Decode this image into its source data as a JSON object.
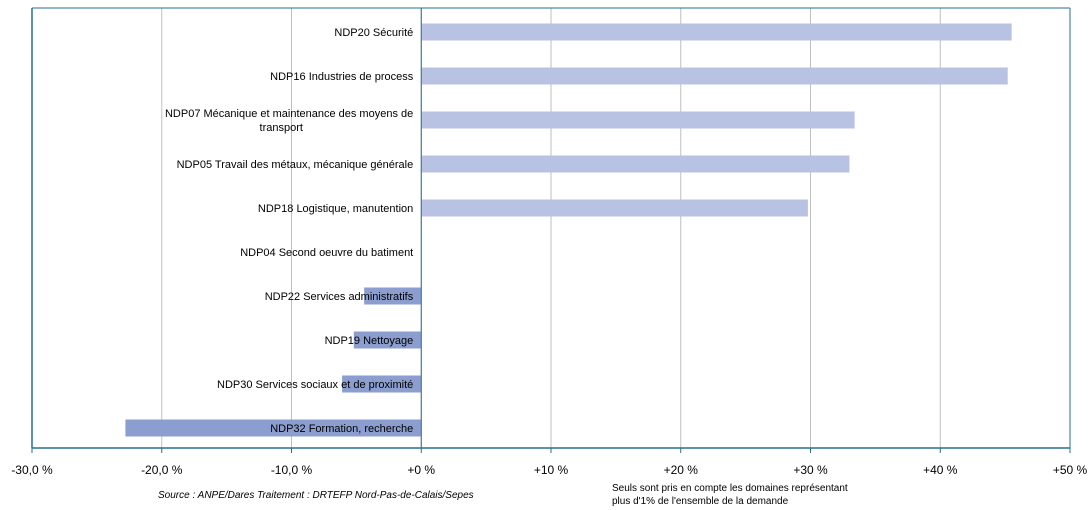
{
  "chart_data": {
    "type": "bar",
    "orientation": "horizontal",
    "categories": [
      "NDP20 Sécurité",
      "NDP16 Industries de process",
      "NDP07 Mécanique et maintenance des moyens de transport",
      "NDP05 Travail des métaux, mécanique générale",
      "NDP18 Logistique, manutention",
      "NDP04 Second oeuvre du batiment",
      "NDP22 Services administratifs",
      "NDP19 Nettoyage",
      "NDP30 Services sociaux et de proximité",
      "NDP32 Formation, recherche"
    ],
    "values": [
      45.5,
      45.2,
      33.4,
      33.0,
      29.8,
      0.0,
      -4.4,
      -5.2,
      -6.1,
      -22.8
    ],
    "xlim": [
      -30,
      50
    ],
    "xticks": [
      -30,
      -20,
      -10,
      0,
      10,
      20,
      30,
      40,
      50
    ],
    "xtick_labels": [
      "-30,0 %",
      "-20,0 %",
      "-10,0 %",
      "+0 %",
      "+10 %",
      "+20 %",
      "+30 %",
      "+40 %",
      "+50 %"
    ],
    "grid": "vertical",
    "colors": {
      "positive": "#b8c2e2",
      "negative": "#8b9ecf",
      "axis": "#2a6f8f",
      "grid": "#bfbfbf"
    }
  },
  "notes": {
    "source": "Source : ANPE/Dares  Traitement : DRTEFP Nord-Pas-de-Calais/Sepes",
    "coverage_line1": "Seuls sont pris en compte les domaines représentant",
    "coverage_line2": "plus d'1% de l'ensemble de la demande"
  }
}
